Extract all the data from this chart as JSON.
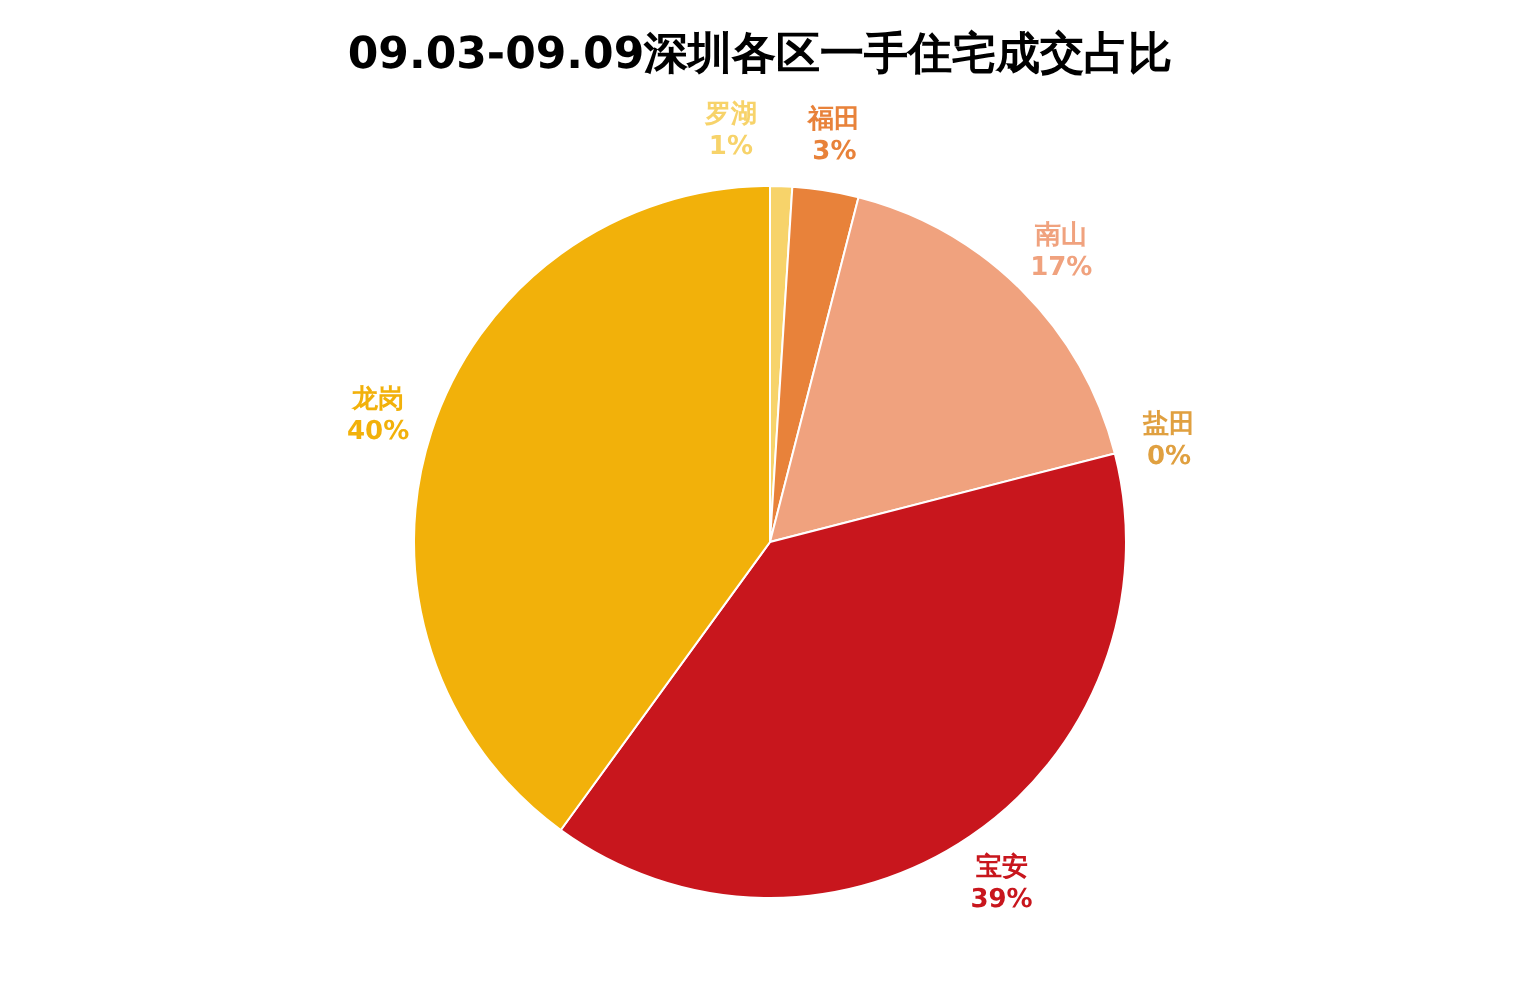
{
  "chart_data": {
    "type": "pie",
    "title": "09.03-09.09深圳各区一手住宅成交占比",
    "categories": [
      "罗湖",
      "福田",
      "南山",
      "盐田",
      "宝安",
      "龙岗"
    ],
    "values": [
      1,
      3,
      17,
      0,
      39,
      40
    ],
    "value_labels": [
      "1%",
      "3%",
      "17%",
      "0%",
      "39%",
      "40%"
    ],
    "colors": [
      "#f7d36a",
      "#e8823a",
      "#f0a27e",
      "#e0a040",
      "#c8161d",
      "#f2b10a"
    ]
  }
}
